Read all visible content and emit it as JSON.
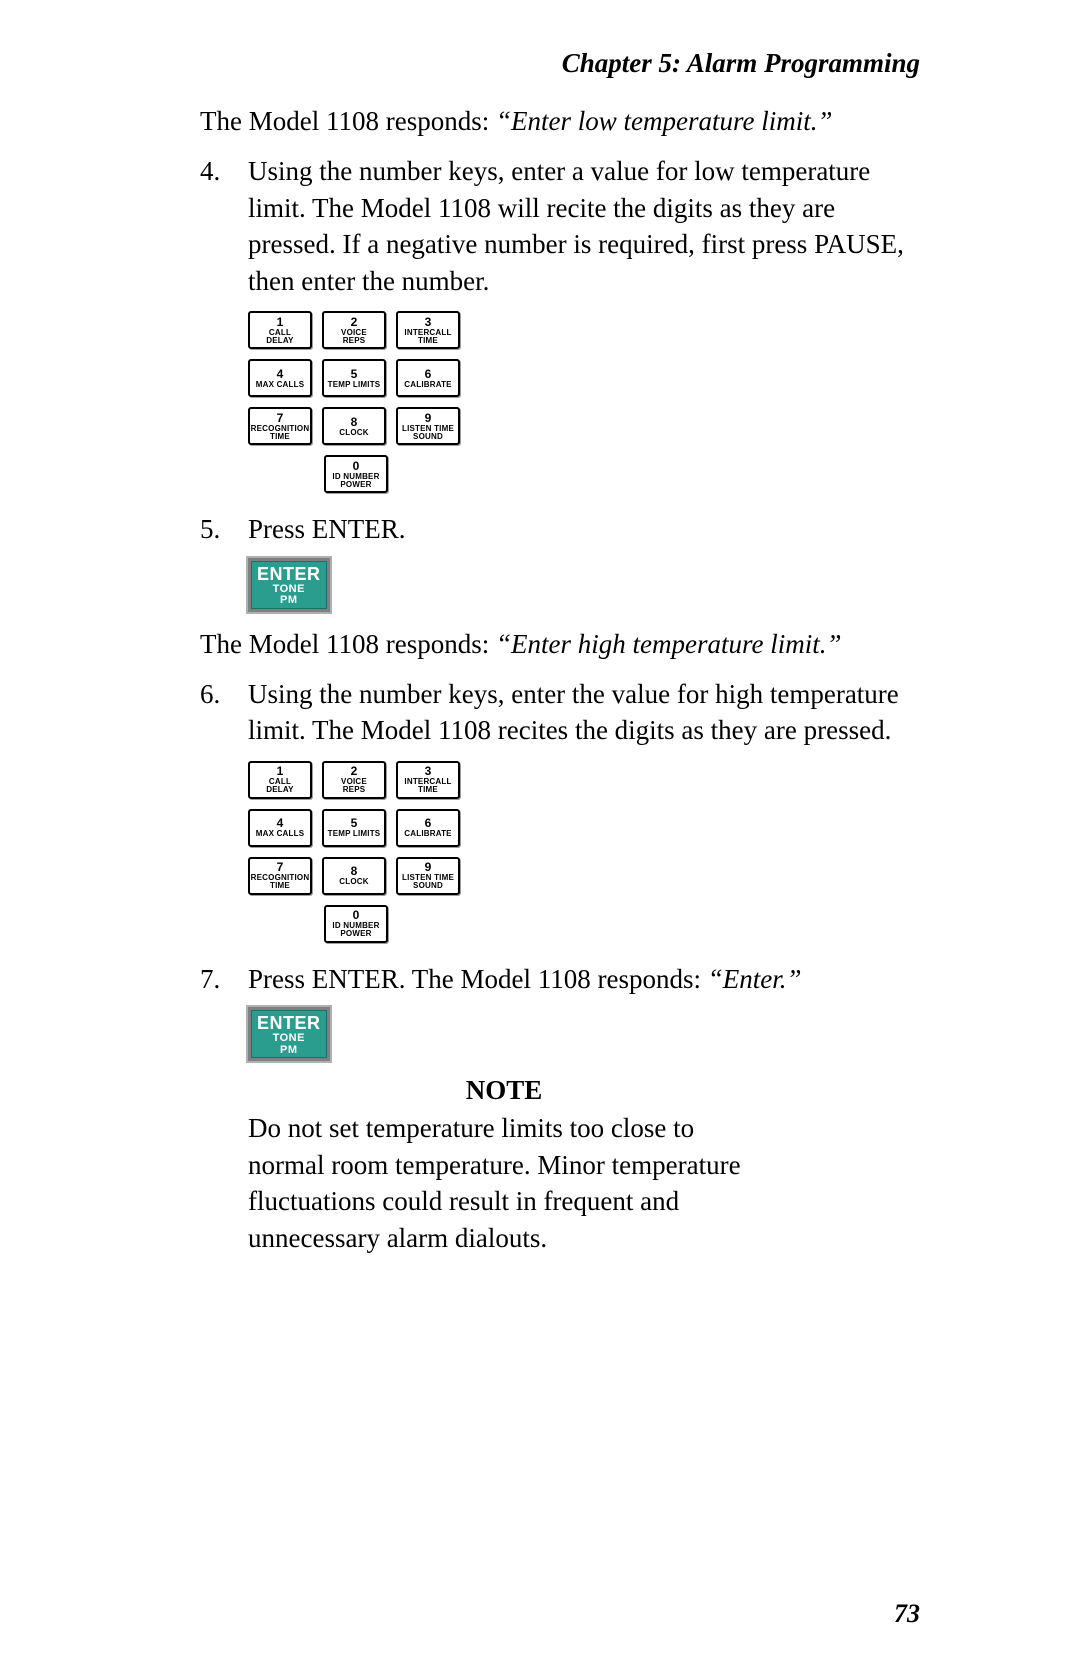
{
  "chapter_header": "Chapter 5: Alarm Programming",
  "line1_prefix": "The Model 1108 responds: ",
  "line1_italic": "“Enter low temperature limit.”",
  "step4": {
    "num": "4.",
    "text": "Using the number keys, enter a value for low temperature limit. The Model 1108 will recite the digits as they are pressed. If a negative number is required, first press PAUSE, then enter the number."
  },
  "keypad": {
    "keys": [
      {
        "num": "1",
        "label": "CALL\nDELAY"
      },
      {
        "num": "2",
        "label": "VOICE\nREPS"
      },
      {
        "num": "3",
        "label": "INTERCALL\nTIME"
      },
      {
        "num": "4",
        "label": "MAX CALLS"
      },
      {
        "num": "5",
        "label": "TEMP LIMITS"
      },
      {
        "num": "6",
        "label": "CALIBRATE"
      },
      {
        "num": "7",
        "label": "RECOGNITION\nTIME"
      },
      {
        "num": "8",
        "label": "CLOCK"
      },
      {
        "num": "9",
        "label": "LISTEN TIME\nSOUND"
      }
    ],
    "zero": {
      "num": "0",
      "label": "ID NUMBER\nPOWER"
    }
  },
  "step5": {
    "num": "5.",
    "text": "Press ENTER."
  },
  "enter_button": {
    "main": "ENTER",
    "sub1": "TONE",
    "sub2": "PM",
    "bg_color": "#2a9d8f",
    "text_color": "#ffffff"
  },
  "line2_prefix": "The Model 1108 responds: ",
  "line2_italic": "“Enter high temperature limit.”",
  "step6": {
    "num": "6.",
    "text": "Using the number keys, enter the value for high temperature limit. The Model 1108 recites the digits as they are pressed."
  },
  "step7": {
    "num": "7.",
    "text_prefix": "Press ENTER. The Model 1108 responds: ",
    "text_italic": "“Enter.”"
  },
  "note": {
    "heading": "NOTE",
    "body": "Do not set temperature limits too close to normal room temperature. Minor temperature fluctuations could result in frequent and unnecessary alarm dialouts."
  },
  "page_number": "73"
}
